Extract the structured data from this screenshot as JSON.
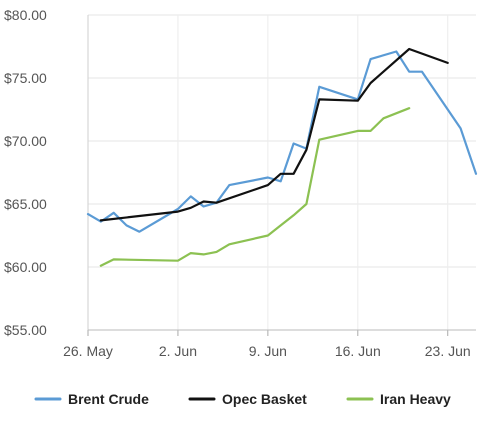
{
  "chart_data": {
    "type": "line",
    "y_tick_labels": [
      "$80.00",
      "$75.00",
      "$70.00",
      "$65.00",
      "$60.00",
      "$55.00"
    ],
    "y_tick_values": [
      80,
      75,
      70,
      65,
      60,
      55
    ],
    "ylim": [
      55,
      80
    ],
    "x_tick_labels": [
      "26. May",
      "2. Jun",
      "9. Jun",
      "16. Jun",
      "23. Jun"
    ],
    "x_tick_days": [
      0,
      7,
      14,
      21,
      28
    ],
    "xlim": [
      0,
      30.2
    ],
    "grid": {
      "horizontal": true,
      "vertical": true
    },
    "legend_position": "bottom",
    "series": [
      {
        "name": "Brent Crude",
        "color": "#5b9bd5",
        "x": [
          0,
          1,
          2,
          3,
          4,
          7,
          8,
          9,
          10,
          11,
          13,
          14,
          15,
          16,
          17,
          18,
          21,
          22,
          24,
          25,
          26,
          29,
          30.2
        ],
        "y": [
          64.2,
          63.6,
          64.3,
          63.3,
          62.8,
          64.6,
          65.6,
          64.8,
          65.1,
          66.5,
          66.9,
          67.1,
          66.8,
          69.8,
          69.4,
          74.3,
          73.3,
          76.5,
          77.1,
          75.5,
          75.5,
          71.0,
          67.4
        ]
      },
      {
        "name": "Opec Basket",
        "color": "#111111",
        "x": [
          1,
          7,
          8,
          9,
          10,
          14,
          15,
          16,
          17,
          18,
          21,
          22,
          25,
          28
        ],
        "y": [
          63.7,
          64.4,
          64.7,
          65.2,
          65.1,
          66.5,
          67.4,
          67.4,
          69.3,
          73.3,
          73.2,
          74.6,
          77.3,
          76.2
        ]
      },
      {
        "name": "Iran Heavy",
        "color": "#8cc152",
        "x": [
          1,
          2,
          7,
          8,
          9,
          10,
          11,
          14,
          15,
          16,
          17,
          18,
          21,
          22,
          23,
          25
        ],
        "y": [
          60.1,
          60.6,
          60.5,
          61.1,
          61.0,
          61.2,
          61.8,
          62.5,
          63.3,
          64.1,
          65.0,
          70.1,
          70.8,
          70.8,
          71.8,
          72.6
        ]
      }
    ],
    "legend": [
      {
        "label": "Brent Crude",
        "color": "#5b9bd5"
      },
      {
        "label": "Opec Basket",
        "color": "#111111"
      },
      {
        "label": "Iran Heavy",
        "color": "#8cc152"
      }
    ]
  }
}
